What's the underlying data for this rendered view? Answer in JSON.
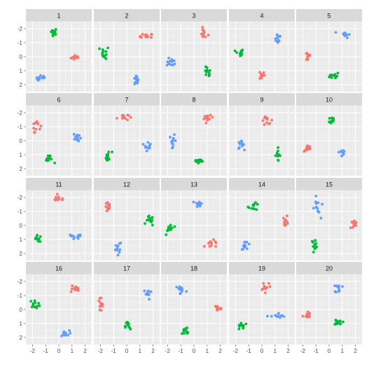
{
  "chart_data": {
    "type": "scatter",
    "facet_style": "small multiples, 5 columns x 4 rows, shared axes",
    "xlim": [
      -2.5,
      2.5
    ],
    "ylim": [
      -2.5,
      2.5
    ],
    "x_ticks": [
      -2,
      -1,
      0,
      1,
      2
    ],
    "y_ticks": [
      -2,
      -1,
      0,
      1,
      2
    ],
    "x_tick_labels": [
      "-2",
      "-1",
      "0",
      "1",
      "2"
    ],
    "y_tick_labels": [
      "2",
      "1",
      "0",
      "-1",
      "-2"
    ],
    "grid": true,
    "panel_background": "#ebebeb",
    "strip_background": "#d9d9d9",
    "series_colors": [
      "#f8766d",
      "#00ba38",
      "#619cff"
    ],
    "facets": [
      {
        "label": "1",
        "groups": [
          {
            "color": "#f8766d",
            "cx": 1.3,
            "cy": -0.05,
            "sx": 0.18,
            "sy": 0.1
          },
          {
            "color": "#00ba38",
            "cx": -0.4,
            "cy": 1.8,
            "sx": 0.14,
            "sy": 0.12
          },
          {
            "color": "#619cff",
            "cx": -1.3,
            "cy": -1.55,
            "sx": 0.22,
            "sy": 0.1
          }
        ]
      },
      {
        "label": "2",
        "groups": [
          {
            "color": "#f8766d",
            "cx": 1.5,
            "cy": 1.45,
            "sx": 0.25,
            "sy": 0.1
          },
          {
            "color": "#00ba38",
            "cx": -1.7,
            "cy": 0.3,
            "sx": 0.18,
            "sy": 0.22
          },
          {
            "color": "#619cff",
            "cx": 0.7,
            "cy": -1.7,
            "sx": 0.1,
            "sy": 0.2
          }
        ]
      },
      {
        "label": "3",
        "groups": [
          {
            "color": "#f8766d",
            "cx": 0.75,
            "cy": 1.65,
            "sx": 0.16,
            "sy": 0.18
          },
          {
            "color": "#00ba38",
            "cx": 1.0,
            "cy": -1.2,
            "sx": 0.14,
            "sy": 0.25
          },
          {
            "color": "#619cff",
            "cx": -1.7,
            "cy": -0.4,
            "sx": 0.18,
            "sy": 0.14
          }
        ]
      },
      {
        "label": "4",
        "groups": [
          {
            "color": "#f8766d",
            "cx": 0.0,
            "cy": -1.3,
            "sx": 0.1,
            "sy": 0.18
          },
          {
            "color": "#00ba38",
            "cx": -1.7,
            "cy": 0.25,
            "sx": 0.15,
            "sy": 0.16
          },
          {
            "color": "#619cff",
            "cx": 1.2,
            "cy": 1.35,
            "sx": 0.15,
            "sy": 0.2
          }
        ]
      },
      {
        "label": "5",
        "groups": [
          {
            "color": "#f8766d",
            "cx": -1.6,
            "cy": 0.05,
            "sx": 0.13,
            "sy": 0.2
          },
          {
            "color": "#00ba38",
            "cx": 0.4,
            "cy": -1.35,
            "sx": 0.18,
            "sy": 0.12
          },
          {
            "color": "#619cff",
            "cx": 1.2,
            "cy": 1.6,
            "sx": 0.2,
            "sy": 0.12
          }
        ]
      },
      {
        "label": "6",
        "groups": [
          {
            "color": "#f8766d",
            "cx": -1.7,
            "cy": 1.15,
            "sx": 0.15,
            "sy": 0.25
          },
          {
            "color": "#00ba38",
            "cx": -0.8,
            "cy": -1.35,
            "sx": 0.18,
            "sy": 0.12
          },
          {
            "color": "#619cff",
            "cx": 1.4,
            "cy": 0.25,
            "sx": 0.14,
            "sy": 0.18
          }
        ]
      },
      {
        "label": "7",
        "groups": [
          {
            "color": "#f8766d",
            "cx": -0.3,
            "cy": 1.7,
            "sx": 0.22,
            "sy": 0.13
          },
          {
            "color": "#00ba38",
            "cx": -1.4,
            "cy": -1.15,
            "sx": 0.14,
            "sy": 0.2
          },
          {
            "color": "#619cff",
            "cx": 1.6,
            "cy": -0.3,
            "sx": 0.12,
            "sy": 0.2
          }
        ]
      },
      {
        "label": "8",
        "groups": [
          {
            "color": "#f8766d",
            "cx": 1.1,
            "cy": 1.6,
            "sx": 0.17,
            "sy": 0.1
          },
          {
            "color": "#00ba38",
            "cx": 0.35,
            "cy": -1.45,
            "sx": 0.22,
            "sy": 0.12
          },
          {
            "color": "#619cff",
            "cx": -1.6,
            "cy": 0.0,
            "sx": 0.12,
            "sy": 0.2
          }
        ]
      },
      {
        "label": "9",
        "groups": [
          {
            "color": "#f8766d",
            "cx": 0.4,
            "cy": 1.45,
            "sx": 0.22,
            "sy": 0.14
          },
          {
            "color": "#00ba38",
            "cx": 1.2,
            "cy": -1.0,
            "sx": 0.1,
            "sy": 0.22
          },
          {
            "color": "#619cff",
            "cx": -1.6,
            "cy": -0.3,
            "sx": 0.12,
            "sy": 0.14
          }
        ]
      },
      {
        "label": "10",
        "groups": [
          {
            "color": "#f8766d",
            "cx": -1.6,
            "cy": -0.55,
            "sx": 0.15,
            "sy": 0.12
          },
          {
            "color": "#00ba38",
            "cx": 0.2,
            "cy": 1.45,
            "sx": 0.12,
            "sy": 0.18
          },
          {
            "color": "#619cff",
            "cx": 1.0,
            "cy": -0.8,
            "sx": 0.12,
            "sy": 0.25
          }
        ]
      },
      {
        "label": "11",
        "groups": [
          {
            "color": "#f8766d",
            "cx": 0.0,
            "cy": 1.9,
            "sx": 0.25,
            "sy": 0.1
          },
          {
            "color": "#00ba38",
            "cx": -1.6,
            "cy": -0.95,
            "sx": 0.2,
            "sy": 0.12
          },
          {
            "color": "#619cff",
            "cx": 1.15,
            "cy": -0.85,
            "sx": 0.3,
            "sy": 0.12
          }
        ]
      },
      {
        "label": "12",
        "groups": [
          {
            "color": "#f8766d",
            "cx": -1.4,
            "cy": 1.3,
            "sx": 0.12,
            "sy": 0.18
          },
          {
            "color": "#00ba38",
            "cx": 1.75,
            "cy": 0.3,
            "sx": 0.14,
            "sy": 0.18
          },
          {
            "color": "#619cff",
            "cx": -0.7,
            "cy": -1.65,
            "sx": 0.16,
            "sy": 0.28
          }
        ]
      },
      {
        "label": "13",
        "groups": [
          {
            "color": "#f8766d",
            "cx": 1.4,
            "cy": -1.35,
            "sx": 0.28,
            "sy": 0.14
          },
          {
            "color": "#00ba38",
            "cx": -1.8,
            "cy": -0.2,
            "sx": 0.14,
            "sy": 0.18
          },
          {
            "color": "#619cff",
            "cx": 0.4,
            "cy": 1.55,
            "sx": 0.15,
            "sy": 0.12
          }
        ]
      },
      {
        "label": "14",
        "groups": [
          {
            "color": "#f8766d",
            "cx": 1.8,
            "cy": 0.3,
            "sx": 0.1,
            "sy": 0.2
          },
          {
            "color": "#00ba38",
            "cx": -0.6,
            "cy": 1.35,
            "sx": 0.2,
            "sy": 0.12
          },
          {
            "color": "#619cff",
            "cx": -1.2,
            "cy": -1.4,
            "sx": 0.18,
            "sy": 0.15
          }
        ]
      },
      {
        "label": "15",
        "groups": [
          {
            "color": "#f8766d",
            "cx": 1.85,
            "cy": 0.1,
            "sx": 0.15,
            "sy": 0.2
          },
          {
            "color": "#00ba38",
            "cx": -1.1,
            "cy": -1.3,
            "sx": 0.14,
            "sy": 0.15
          },
          {
            "color": "#619cff",
            "cx": -0.9,
            "cy": 1.2,
            "sx": 0.12,
            "sy": 0.4
          }
        ]
      },
      {
        "label": "16",
        "groups": [
          {
            "color": "#f8766d",
            "cx": 1.15,
            "cy": 1.45,
            "sx": 0.25,
            "sy": 0.16
          },
          {
            "color": "#00ba38",
            "cx": -1.8,
            "cy": 0.4,
            "sx": 0.2,
            "sy": 0.13
          },
          {
            "color": "#619cff",
            "cx": 0.4,
            "cy": -1.75,
            "sx": 0.2,
            "sy": 0.12
          }
        ]
      },
      {
        "label": "17",
        "groups": [
          {
            "color": "#f8766d",
            "cx": -2.0,
            "cy": 0.3,
            "sx": 0.12,
            "sy": 0.32
          },
          {
            "color": "#00ba38",
            "cx": 0.1,
            "cy": -1.2,
            "sx": 0.1,
            "sy": 0.22
          },
          {
            "color": "#619cff",
            "cx": 1.6,
            "cy": 1.1,
            "sx": 0.15,
            "sy": 0.2
          }
        ]
      },
      {
        "label": "18",
        "groups": [
          {
            "color": "#f8766d",
            "cx": 1.8,
            "cy": 0.1,
            "sx": 0.15,
            "sy": 0.15
          },
          {
            "color": "#00ba38",
            "cx": -0.6,
            "cy": -1.55,
            "sx": 0.18,
            "sy": 0.18
          },
          {
            "color": "#619cff",
            "cx": -1.0,
            "cy": 1.4,
            "sx": 0.2,
            "sy": 0.18
          }
        ]
      },
      {
        "label": "19",
        "groups": [
          {
            "color": "#f8766d",
            "cx": 0.3,
            "cy": 1.7,
            "sx": 0.2,
            "sy": 0.18
          },
          {
            "color": "#00ba38",
            "cx": -1.5,
            "cy": -1.15,
            "sx": 0.2,
            "sy": 0.15
          },
          {
            "color": "#619cff",
            "cx": 1.3,
            "cy": -0.5,
            "sx": 0.3,
            "sy": 0.12
          }
        ]
      },
      {
        "label": "20",
        "groups": [
          {
            "color": "#f8766d",
            "cx": -1.7,
            "cy": -0.4,
            "sx": 0.14,
            "sy": 0.13
          },
          {
            "color": "#00ba38",
            "cx": 0.7,
            "cy": -0.9,
            "sx": 0.15,
            "sy": 0.1
          },
          {
            "color": "#619cff",
            "cx": 0.75,
            "cy": 1.5,
            "sx": 0.12,
            "sy": 0.18
          }
        ]
      }
    ]
  }
}
